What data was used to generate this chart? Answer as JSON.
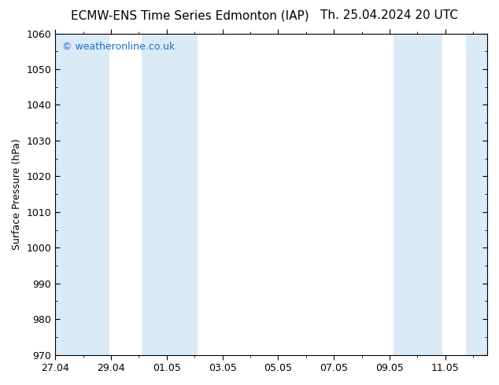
{
  "title_left": "ECMW-ENS Time Series Edmonton (IAP)",
  "title_right": "Th. 25.04.2024 20 UTC",
  "ylabel": "Surface Pressure (hPa)",
  "ylim": [
    970,
    1060
  ],
  "ytick_step": 10,
  "xtick_labels": [
    "27.04",
    "29.04",
    "01.05",
    "03.05",
    "05.05",
    "07.05",
    "09.05",
    "11.05"
  ],
  "xtick_positions": [
    0,
    2,
    4,
    6,
    8,
    10,
    12,
    14
  ],
  "xlim": [
    0,
    15.5
  ],
  "shade_regions": [
    [
      0.0,
      1.93
    ],
    [
      3.1,
      5.1
    ],
    [
      12.15,
      13.9
    ],
    [
      14.75,
      15.5
    ]
  ],
  "shade_color": "#daeaf7",
  "background_color": "#ffffff",
  "watermark_text": "© weatheronline.co.uk",
  "watermark_color": "#1a6ebd",
  "watermark_fontsize": 9,
  "title_fontsize": 11,
  "axis_label_fontsize": 9,
  "tick_fontsize": 9
}
